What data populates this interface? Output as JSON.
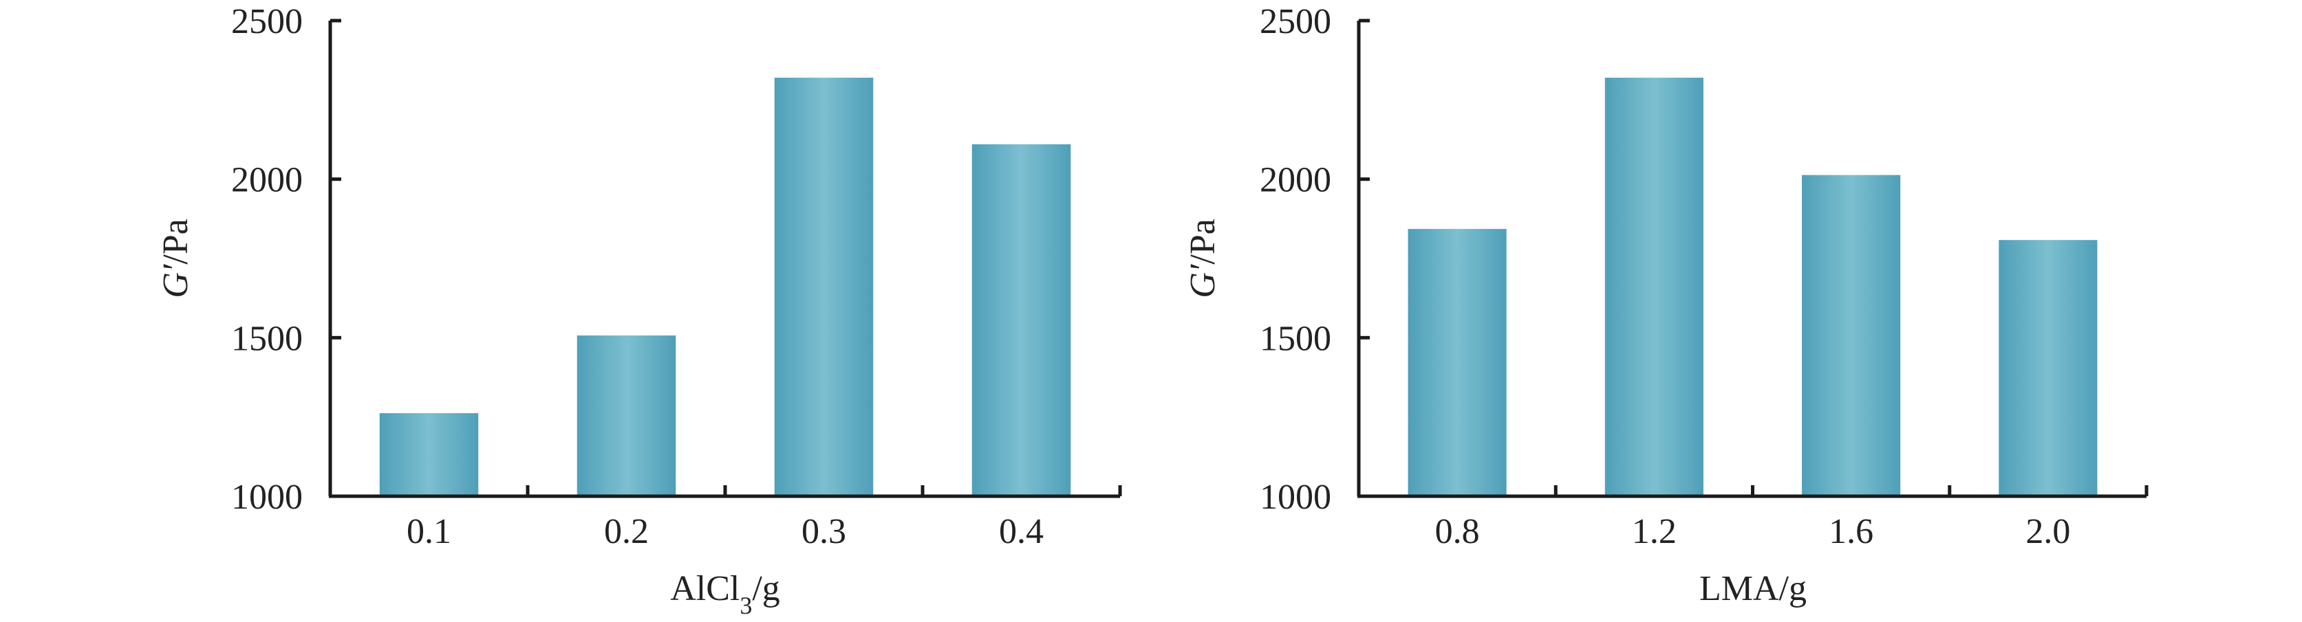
{
  "colors": {
    "bar_edge": "#4f9fb8",
    "bar_center": "#7cbfd0",
    "axis": "#1a1a1a"
  },
  "chart_data": [
    {
      "type": "bar",
      "categories": [
        "0.1",
        "0.2",
        "0.3",
        "0.4"
      ],
      "values": [
        1262,
        1507,
        2320,
        2110
      ],
      "ylim": [
        1000,
        2500
      ],
      "yticks": [
        "1000",
        "1500",
        "2000",
        "2500"
      ],
      "ylabel": {
        "italic": "G′",
        "rest": "/Pa"
      },
      "xlabel": {
        "main": "AlCl",
        "sub": "3",
        "rest": "/g"
      }
    },
    {
      "type": "bar",
      "categories": [
        "0.8",
        "1.2",
        "1.6",
        "2.0"
      ],
      "values": [
        1843,
        2320,
        2013,
        1808
      ],
      "ylim": [
        1000,
        2500
      ],
      "yticks": [
        "1000",
        "1500",
        "2000",
        "2500"
      ],
      "ylabel": {
        "italic": "G′",
        "rest": "/Pa"
      },
      "xlabel": {
        "main": "LMA/g",
        "sub": "",
        "rest": ""
      }
    }
  ]
}
